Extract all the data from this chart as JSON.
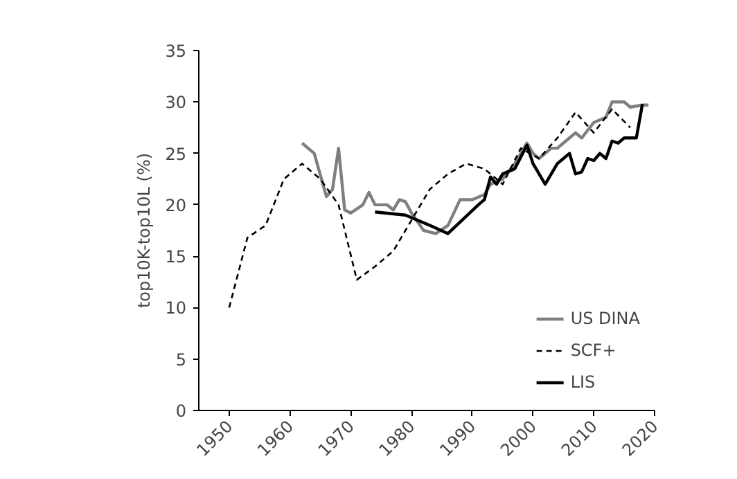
{
  "chart_data": {
    "type": "line",
    "ylabel": "top10K-top10L (%)",
    "xlim": [
      1945,
      2020
    ],
    "xticks": [
      1950,
      1960,
      1970,
      1980,
      1990,
      2000,
      2010,
      2020
    ],
    "ylim": [
      0,
      35
    ],
    "yticks": [
      0,
      5,
      10,
      15,
      20,
      25,
      30,
      35
    ],
    "grid": false,
    "legend": "bottom right",
    "series": [
      {
        "name": "US DINA",
        "color": "#7f7f7f",
        "line_style": "solid",
        "x": [
          1962,
          1964,
          1966,
          1967,
          1968,
          1969,
          1970,
          1972,
          1973,
          1974,
          1976,
          1977,
          1978,
          1979,
          1980,
          1982,
          1984,
          1986,
          1988,
          1990,
          1992,
          1993,
          1995,
          1997,
          1999,
          2000,
          2001,
          2003,
          2004,
          2006,
          2007,
          2008,
          2010,
          2012,
          2013,
          2015,
          2016,
          2018,
          2019
        ],
        "values": [
          26,
          25,
          20.8,
          21.5,
          25.5,
          19.5,
          19.2,
          20,
          21.2,
          20,
          20,
          19.5,
          20.5,
          20.3,
          19.2,
          17.5,
          17.2,
          18,
          20.5,
          20.5,
          21,
          22,
          22.5,
          24,
          26,
          25,
          24.5,
          25.5,
          25.5,
          26.5,
          27,
          26.5,
          28,
          28.5,
          30,
          30,
          29.5,
          29.7,
          29.7
        ]
      },
      {
        "name": "SCF+",
        "color": "#000000",
        "line_style": "dashed",
        "x": [
          1950,
          1953,
          1956,
          1959,
          1962,
          1965,
          1968,
          1971,
          1974,
          1977,
          1980,
          1983,
          1986,
          1989,
          1992,
          1995,
          1998,
          2001,
          2004,
          2007,
          2010,
          2013,
          2016
        ],
        "values": [
          10,
          16.8,
          18,
          22.5,
          24,
          22.5,
          20,
          12.7,
          14,
          15.5,
          18.5,
          21.5,
          23,
          24,
          23.5,
          22,
          25.5,
          24.5,
          26.5,
          29,
          27,
          29.3,
          27.5
        ]
      },
      {
        "name": "LIS",
        "color": "#000000",
        "line_style": "solid",
        "x": [
          1974,
          1979,
          1983,
          1986,
          1991,
          1992,
          1993,
          1994,
          1995,
          1997,
          1999,
          2000,
          2002,
          2004,
          2005,
          2006,
          2007,
          2008,
          2009,
          2010,
          2011,
          2012,
          2013,
          2014,
          2015,
          2016,
          2017,
          2018
        ],
        "values": [
          19.3,
          19,
          18,
          17.2,
          20,
          20.5,
          22.7,
          22,
          23,
          23.5,
          25.8,
          24,
          22,
          24,
          24.5,
          25,
          23,
          23.2,
          24.5,
          24.3,
          25,
          24.5,
          26.2,
          26,
          26.5,
          26.5,
          26.5,
          29.8
        ]
      }
    ]
  }
}
